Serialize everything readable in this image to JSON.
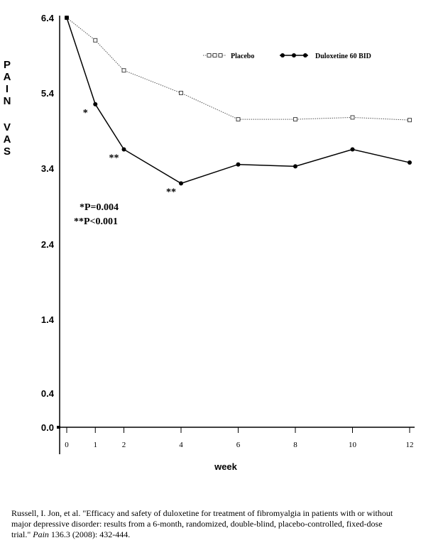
{
  "chart_data": {
    "type": "line",
    "ylabel": "PAIN VAS",
    "xlabel": "week",
    "x": [
      0,
      1,
      2,
      4,
      6,
      8,
      10,
      12
    ],
    "xticks": [
      "0",
      "1",
      "2",
      "4",
      "6",
      "8",
      "10",
      "12"
    ],
    "yticks": [
      "6.4",
      "5.4",
      "3.4",
      "2.4",
      "1.4",
      "0.4",
      "0.0"
    ],
    "ylim": [
      0.0,
      6.4
    ],
    "series": [
      {
        "name": "Placebo",
        "color": "#555555",
        "marker": "open-square",
        "style": "dotted",
        "values": [
          6.4,
          6.1,
          5.7,
          5.4,
          4.7,
          4.7,
          4.75,
          4.68
        ]
      },
      {
        "name": "Duloxetine 60 BID",
        "color": "#000000",
        "marker": "filled-circle",
        "style": "solid",
        "values": [
          6.4,
          5.1,
          3.9,
          3.2,
          3.5,
          3.45,
          3.9,
          3.55
        ]
      }
    ],
    "annotations": {
      "stars": [
        {
          "week": 1,
          "text": "*"
        },
        {
          "week": 2,
          "text": "**"
        },
        {
          "week": 4,
          "text": "**"
        }
      ],
      "pvalues": [
        "*P=0.004",
        "**P<0.001"
      ]
    },
    "legend_position": "top-right"
  },
  "citation": {
    "before_journal": "Russell, I. Jon, et al. \"Efficacy and safety of duloxetine for treatment of fibromyalgia in patients with or without major depressive disorder: results from a 6-month, randomized, double-blind, placebo-controlled, fixed-dose trial.\" ",
    "journal": "Pain",
    "after_journal": " 136.3 (2008): 432-444."
  }
}
